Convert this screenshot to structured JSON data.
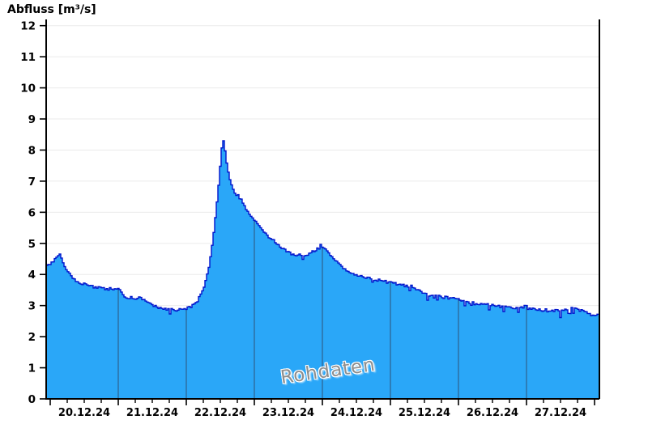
{
  "title": "Abfluss [m³/s]",
  "watermark": {
    "text": "Rohdaten",
    "color": "#8e8e8e",
    "rotation_deg": -8
  },
  "chart_data": {
    "type": "area",
    "title": "Abfluss [m³/s]",
    "ylabel": "Abfluss [m³/s]",
    "xlabel": "",
    "series_label": "Rohdaten",
    "ylim": [
      0,
      12
    ],
    "y_ticks": [
      0,
      1,
      2,
      3,
      4,
      5,
      6,
      7,
      8,
      9,
      10,
      11,
      12
    ],
    "x_tick_labels": [
      "20.12.24",
      "21.12.24",
      "22.12.24",
      "23.12.24",
      "24.12.24",
      "25.12.24",
      "26.12.24",
      "27.12.24"
    ],
    "x_major_day_ticks": [
      0,
      1,
      2,
      3,
      4,
      5,
      6,
      7,
      8
    ],
    "x_minor_tick_step_days": 0.25,
    "day_gridlines": [
      1,
      2,
      3,
      4,
      5,
      6,
      7
    ],
    "x_range_days": [
      -0.06,
      8.07
    ],
    "grid": {
      "horizontal": true,
      "vertical_inside_area_only": true
    },
    "legend": "none",
    "anchors_days_value": [
      [
        -0.06,
        4.27
      ],
      [
        0.03,
        4.4
      ],
      [
        0.12,
        4.68
      ],
      [
        0.16,
        4.5
      ],
      [
        0.22,
        4.15
      ],
      [
        0.3,
        3.95
      ],
      [
        0.4,
        3.72
      ],
      [
        0.55,
        3.68
      ],
      [
        0.65,
        3.57
      ],
      [
        1.0,
        3.53
      ],
      [
        1.08,
        3.28
      ],
      [
        1.32,
        3.24
      ],
      [
        1.45,
        3.05
      ],
      [
        1.6,
        2.9
      ],
      [
        1.75,
        2.85
      ],
      [
        1.95,
        2.87
      ],
      [
        2.05,
        2.95
      ],
      [
        2.15,
        3.15
      ],
      [
        2.25,
        3.6
      ],
      [
        2.32,
        4.2
      ],
      [
        2.38,
        5.1
      ],
      [
        2.43,
        6.1
      ],
      [
        2.47,
        7.0
      ],
      [
        2.5,
        7.8
      ],
      [
        2.525,
        8.38
      ],
      [
        2.55,
        8.15
      ],
      [
        2.575,
        7.7
      ],
      [
        2.6,
        7.35
      ],
      [
        2.64,
        7.0
      ],
      [
        2.66,
        6.85
      ],
      [
        2.7,
        6.6
      ],
      [
        2.78,
        6.5
      ],
      [
        2.83,
        6.25
      ],
      [
        2.9,
        6.0
      ],
      [
        3.0,
        5.73
      ],
      [
        3.1,
        5.45
      ],
      [
        3.2,
        5.2
      ],
      [
        3.3,
        5.05
      ],
      [
        3.4,
        4.85
      ],
      [
        3.5,
        4.7
      ],
      [
        3.6,
        4.62
      ],
      [
        3.7,
        4.6
      ],
      [
        3.8,
        4.68
      ],
      [
        3.9,
        4.8
      ],
      [
        3.97,
        4.95
      ],
      [
        4.05,
        4.8
      ],
      [
        4.15,
        4.5
      ],
      [
        4.25,
        4.3
      ],
      [
        4.35,
        4.1
      ],
      [
        4.5,
        3.98
      ],
      [
        4.65,
        3.9
      ],
      [
        4.8,
        3.83
      ],
      [
        5.0,
        3.74
      ],
      [
        5.15,
        3.67
      ],
      [
        5.3,
        3.62
      ],
      [
        5.45,
        3.45
      ],
      [
        5.55,
        3.3
      ],
      [
        5.75,
        3.28
      ],
      [
        5.9,
        3.24
      ],
      [
        6.0,
        3.2
      ],
      [
        6.15,
        3.1
      ],
      [
        6.3,
        3.05
      ],
      [
        6.5,
        3.0
      ],
      [
        6.65,
        2.95
      ],
      [
        6.85,
        2.95
      ],
      [
        7.0,
        2.97
      ],
      [
        7.1,
        2.88
      ],
      [
        7.3,
        2.85
      ],
      [
        7.5,
        2.83
      ],
      [
        7.6,
        2.88
      ],
      [
        7.7,
        2.95
      ],
      [
        7.8,
        2.88
      ],
      [
        7.92,
        2.72
      ],
      [
        8.0,
        2.7
      ],
      [
        8.07,
        2.68
      ]
    ],
    "noise": {
      "amplitude": 0.055,
      "down_spike": 0.2,
      "down_spike_prob": 0.07,
      "seed": 987654321
    },
    "peak_value": 8.4,
    "colors": {
      "area_fill": "#2aa7f8",
      "line": "#0013cc",
      "day_gridline": "#2d6b9d",
      "h_gridline": "#ebebeb",
      "axis": "#000000",
      "label": "#000000",
      "background": "#ffffff",
      "watermark": "#8e8e8e"
    }
  }
}
